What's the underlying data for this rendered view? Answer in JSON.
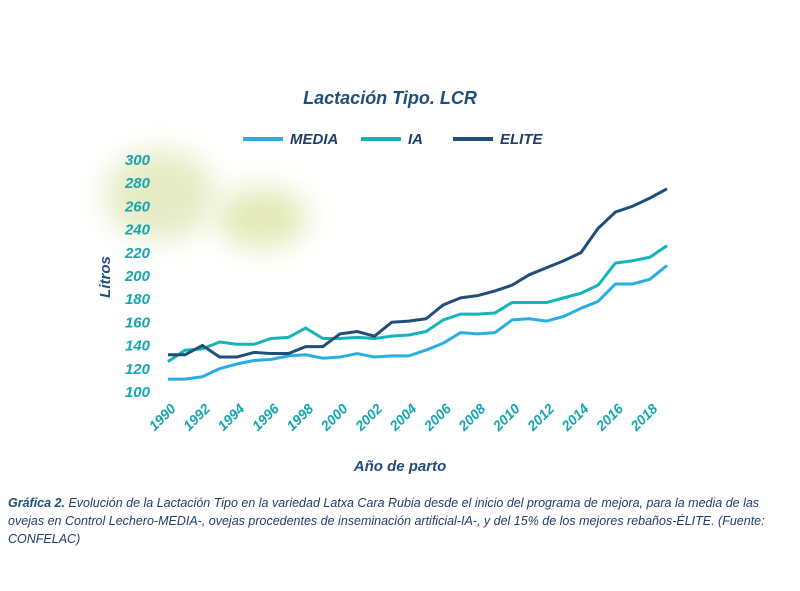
{
  "chart_data": {
    "type": "line",
    "title": "Lactación Tipo. LCR",
    "x_label": "Año de parto",
    "y_label": "Litros",
    "x": [
      1990,
      1991,
      1992,
      1993,
      1994,
      1995,
      1996,
      1997,
      1998,
      1999,
      2000,
      2001,
      2002,
      2003,
      2004,
      2005,
      2006,
      2007,
      2008,
      2009,
      2010,
      2011,
      2012,
      2013,
      2014,
      2015,
      2016,
      2017,
      2018,
      2019
    ],
    "xlim": [
      1990,
      2019
    ],
    "xticks": [
      1990,
      1992,
      1994,
      1996,
      1998,
      2000,
      2002,
      2004,
      2006,
      2008,
      2010,
      2012,
      2014,
      2016,
      2018
    ],
    "ylim": [
      100,
      300
    ],
    "yticks": [
      100,
      120,
      140,
      160,
      180,
      200,
      220,
      240,
      260,
      280,
      300
    ],
    "grid": false,
    "series": [
      {
        "name": "MEDIA",
        "color": "#29aee4",
        "values": [
          112,
          112,
          114,
          121,
          125,
          128,
          129,
          132,
          133,
          130,
          131,
          134,
          131,
          132,
          132,
          137,
          143,
          152,
          151,
          152,
          163,
          164,
          162,
          166,
          173,
          179,
          194,
          194,
          198,
          210
        ]
      },
      {
        "name": "IA",
        "color": "#13b5b8",
        "values": [
          127,
          137,
          138,
          144,
          142,
          142,
          147,
          148,
          156,
          147,
          147,
          148,
          147,
          149,
          150,
          153,
          163,
          168,
          168,
          169,
          178,
          178,
          178,
          182,
          186,
          193,
          212,
          214,
          217,
          227
        ]
      },
      {
        "name": "ELITE",
        "color": "#1f4e79",
        "values": [
          133,
          133,
          141,
          131,
          131,
          135,
          134,
          134,
          140,
          140,
          151,
          153,
          149,
          161,
          162,
          164,
          176,
          182,
          184,
          188,
          193,
          202,
          208,
          214,
          221,
          242,
          256,
          261,
          268,
          276
        ]
      }
    ],
    "caption_label": "Gráfica 2.",
    "caption_text": "Evolución de la Lactación Tipo en la variedad Latxa Cara Rubia desde el inicio del programa de mejora, para la media de las ovejas en Control Lechero-MEDIA-, ovejas procedentes de inseminación artificial-IA-, y del 15% de los mejores rebaños-ÉLITE. (Fuente: CONFELAC)"
  }
}
